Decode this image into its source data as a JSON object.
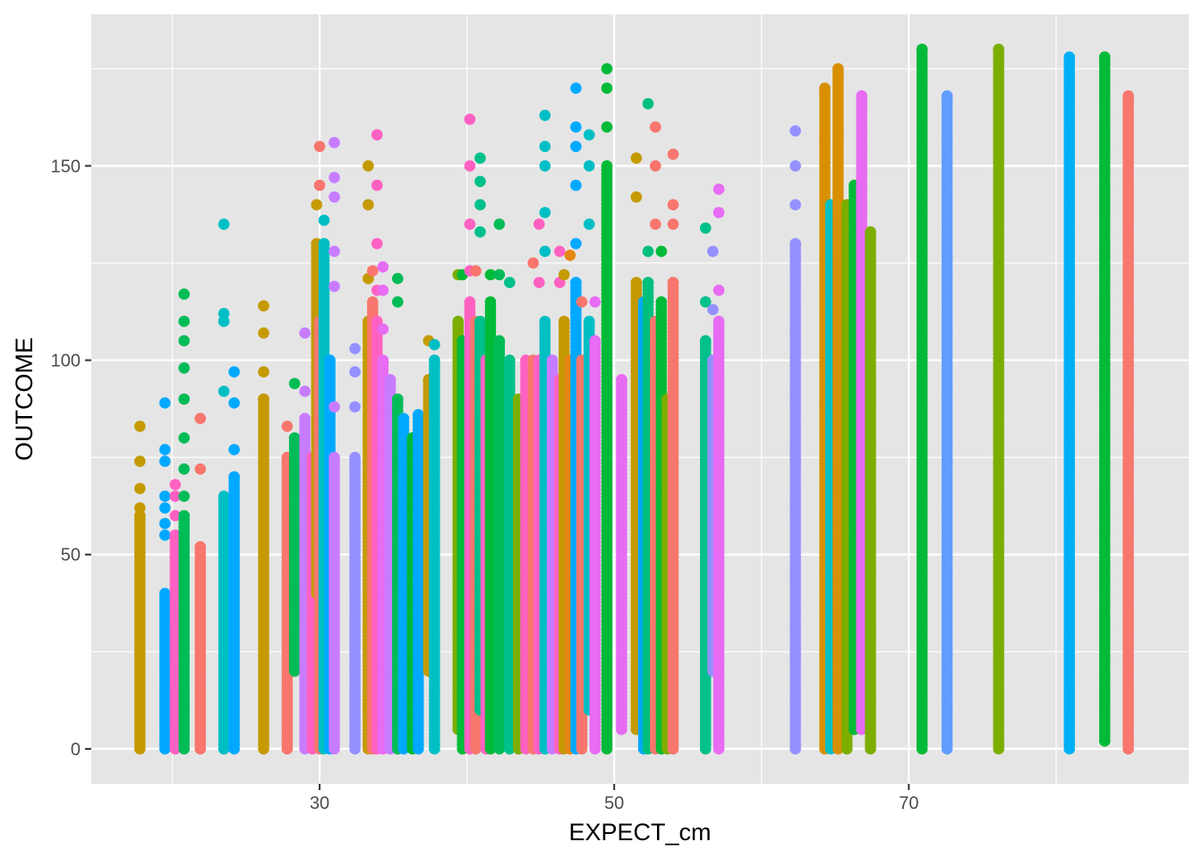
{
  "chart_data": {
    "type": "scatter",
    "title": "",
    "xlabel": "EXPECT_cm",
    "ylabel": "OUTCOME",
    "xlim": [
      14.5,
      89
    ],
    "ylim": [
      -9,
      189
    ],
    "x_ticks": [
      30,
      50,
      70
    ],
    "y_ticks": [
      0,
      50,
      100,
      150
    ],
    "grid": true,
    "legend": "none",
    "panel_background": "#e5e5e5",
    "series": [
      {
        "x": 17.8,
        "color": "#C49A00",
        "ymin": 0,
        "ymax": 60,
        "outliers": [
          62,
          67,
          74,
          83
        ]
      },
      {
        "x": 19.5,
        "color": "#00A9FF",
        "ymin": 0,
        "ymax": 40,
        "outliers": [
          55,
          58,
          62,
          65,
          74,
          77,
          89
        ]
      },
      {
        "x": 20.2,
        "color": "#FF61C3",
        "ymin": 0,
        "ymax": 55,
        "outliers": [
          60,
          65,
          68
        ]
      },
      {
        "x": 20.8,
        "color": "#00BC56",
        "ymin": 0,
        "ymax": 60,
        "outliers": [
          65,
          72,
          80,
          90,
          98,
          105,
          110,
          117
        ]
      },
      {
        "x": 21.9,
        "color": "#F8766D",
        "ymin": 0,
        "ymax": 52,
        "outliers": [
          72,
          85
        ]
      },
      {
        "x": 23.5,
        "color": "#00BFC4",
        "ymin": 0,
        "ymax": 65,
        "outliers": [
          92,
          110,
          112,
          135
        ]
      },
      {
        "x": 24.2,
        "color": "#00A9FF",
        "ymin": 0,
        "ymax": 70,
        "outliers": [
          77,
          89,
          97
        ]
      },
      {
        "x": 26.2,
        "color": "#C49A00",
        "ymin": 0,
        "ymax": 90,
        "outliers": [
          97,
          107,
          114
        ]
      },
      {
        "x": 27.8,
        "color": "#F8766D",
        "ymin": 0,
        "ymax": 75,
        "outliers": [
          83
        ]
      },
      {
        "x": 28.3,
        "color": "#00BC56",
        "ymin": 20,
        "ymax": 80,
        "outliers": [
          94
        ]
      },
      {
        "x": 29.0,
        "color": "#C77CFF",
        "ymin": 0,
        "ymax": 85,
        "outliers": [
          92,
          107
        ]
      },
      {
        "x": 29.5,
        "color": "#FF61C3",
        "ymin": 0,
        "ymax": 75,
        "outliers": []
      },
      {
        "x": 29.8,
        "color": "#C49A00",
        "ymin": 40,
        "ymax": 130,
        "outliers": [
          140
        ]
      },
      {
        "x": 30.0,
        "color": "#F8766D",
        "ymin": 0,
        "ymax": 110,
        "outliers": [
          145,
          155
        ]
      },
      {
        "x": 30.3,
        "color": "#00BFC4",
        "ymin": 0,
        "ymax": 130,
        "outliers": [
          136
        ]
      },
      {
        "x": 30.7,
        "color": "#00A9FF",
        "ymin": 0,
        "ymax": 100,
        "outliers": []
      },
      {
        "x": 31.0,
        "color": "#C77CFF",
        "ymin": 0,
        "ymax": 75,
        "outliers": [
          88,
          119,
          128,
          142,
          147,
          156
        ]
      },
      {
        "x": 32.4,
        "color": "#9590FF",
        "ymin": 0,
        "ymax": 75,
        "outliers": [
          88,
          97,
          103
        ]
      },
      {
        "x": 33.3,
        "color": "#C49A00",
        "ymin": 0,
        "ymax": 110,
        "outliers": [
          121,
          140,
          150
        ]
      },
      {
        "x": 33.6,
        "color": "#F8766D",
        "ymin": 0,
        "ymax": 115,
        "outliers": [
          123
        ]
      },
      {
        "x": 33.9,
        "color": "#FF61C3",
        "ymin": 0,
        "ymax": 110,
        "outliers": [
          118,
          130,
          145,
          158
        ]
      },
      {
        "x": 34.3,
        "color": "#E76BF3",
        "ymin": 0,
        "ymax": 100,
        "outliers": [
          108,
          118,
          124
        ]
      },
      {
        "x": 34.8,
        "color": "#C77CFF",
        "ymin": 0,
        "ymax": 95,
        "outliers": []
      },
      {
        "x": 35.3,
        "color": "#00BC56",
        "ymin": 0,
        "ymax": 90,
        "outliers": [
          115,
          121
        ]
      },
      {
        "x": 35.7,
        "color": "#00A9FF",
        "ymin": 0,
        "ymax": 85,
        "outliers": []
      },
      {
        "x": 36.3,
        "color": "#00BA38",
        "ymin": 0,
        "ymax": 80,
        "outliers": []
      },
      {
        "x": 36.7,
        "color": "#00A9FF",
        "ymin": 0,
        "ymax": 86,
        "outliers": []
      },
      {
        "x": 37.4,
        "color": "#C49A00",
        "ymin": 20,
        "ymax": 95,
        "outliers": [
          105
        ]
      },
      {
        "x": 37.8,
        "color": "#00BFC4",
        "ymin": 0,
        "ymax": 100,
        "outliers": [
          104
        ]
      },
      {
        "x": 39.4,
        "color": "#7CAE00",
        "ymin": 5,
        "ymax": 110,
        "outliers": [
          122
        ]
      },
      {
        "x": 39.7,
        "color": "#00BA38",
        "ymin": 0,
        "ymax": 105,
        "outliers": [
          122
        ]
      },
      {
        "x": 40.2,
        "color": "#FF61C3",
        "ymin": 0,
        "ymax": 115,
        "outliers": [
          123,
          135,
          150,
          162
        ]
      },
      {
        "x": 40.6,
        "color": "#F8766D",
        "ymin": 0,
        "ymax": 110,
        "outliers": [
          123
        ]
      },
      {
        "x": 40.9,
        "color": "#00C08B",
        "ymin": 10,
        "ymax": 110,
        "outliers": [
          133,
          140,
          146,
          152
        ]
      },
      {
        "x": 41.3,
        "color": "#FF61C3",
        "ymin": 0,
        "ymax": 100,
        "outliers": []
      },
      {
        "x": 41.6,
        "color": "#00BA38",
        "ymin": 0,
        "ymax": 115,
        "outliers": [
          122
        ]
      },
      {
        "x": 42.2,
        "color": "#00BC56",
        "ymin": 0,
        "ymax": 105,
        "outliers": [
          122,
          135
        ]
      },
      {
        "x": 42.9,
        "color": "#00C08B",
        "ymin": 0,
        "ymax": 100,
        "outliers": [
          120
        ]
      },
      {
        "x": 43.5,
        "color": "#7CAE00",
        "ymin": 0,
        "ymax": 90,
        "outliers": []
      },
      {
        "x": 44.0,
        "color": "#FF61C3",
        "ymin": 0,
        "ymax": 100,
        "outliers": []
      },
      {
        "x": 44.5,
        "color": "#F8766D",
        "ymin": 0,
        "ymax": 100,
        "outliers": [
          125
        ]
      },
      {
        "x": 44.9,
        "color": "#FF61C3",
        "ymin": 0,
        "ymax": 100,
        "outliers": [
          120,
          135
        ]
      },
      {
        "x": 45.3,
        "color": "#00BFC4",
        "ymin": 0,
        "ymax": 110,
        "outliers": [
          128,
          138,
          150,
          155,
          163
        ]
      },
      {
        "x": 45.8,
        "color": "#C77CFF",
        "ymin": 0,
        "ymax": 100,
        "outliers": []
      },
      {
        "x": 46.3,
        "color": "#FF61C3",
        "ymin": 0,
        "ymax": 95,
        "outliers": [
          120,
          128
        ]
      },
      {
        "x": 46.6,
        "color": "#C49A00",
        "ymin": 0,
        "ymax": 110,
        "outliers": [
          122
        ]
      },
      {
        "x": 47.0,
        "color": "#E68613",
        "ymin": 0,
        "ymax": 100,
        "outliers": [
          127
        ]
      },
      {
        "x": 47.4,
        "color": "#00A9FF",
        "ymin": 0,
        "ymax": 120,
        "outliers": [
          130,
          145,
          155,
          160,
          170
        ]
      },
      {
        "x": 47.8,
        "color": "#F8766D",
        "ymin": 0,
        "ymax": 100,
        "outliers": [
          115
        ]
      },
      {
        "x": 48.3,
        "color": "#00BFC4",
        "ymin": 10,
        "ymax": 110,
        "outliers": [
          135,
          150,
          158
        ]
      },
      {
        "x": 48.7,
        "color": "#E76BF3",
        "ymin": 0,
        "ymax": 105,
        "outliers": [
          115
        ]
      },
      {
        "x": 49.5,
        "color": "#00BA38",
        "ymin": 0,
        "ymax": 150,
        "outliers": [
          160,
          170,
          175
        ]
      },
      {
        "x": 50.5,
        "color": "#E76BF3",
        "ymin": 5,
        "ymax": 95,
        "outliers": []
      },
      {
        "x": 51.5,
        "color": "#C49A00",
        "ymin": 5,
        "ymax": 120,
        "outliers": [
          142,
          152
        ]
      },
      {
        "x": 52.0,
        "color": "#00A9FF",
        "ymin": 0,
        "ymax": 115,
        "outliers": []
      },
      {
        "x": 52.3,
        "color": "#00BF7D",
        "ymin": 0,
        "ymax": 120,
        "outliers": [
          128,
          166
        ]
      },
      {
        "x": 52.8,
        "color": "#F8766D",
        "ymin": 0,
        "ymax": 110,
        "outliers": [
          135,
          150,
          160
        ]
      },
      {
        "x": 53.2,
        "color": "#00BA38",
        "ymin": 0,
        "ymax": 115,
        "outliers": [
          128
        ]
      },
      {
        "x": 53.6,
        "color": "#7CAE00",
        "ymin": 0,
        "ymax": 90,
        "outliers": []
      },
      {
        "x": 54.0,
        "color": "#F8766D",
        "ymin": 0,
        "ymax": 120,
        "outliers": [
          135,
          140,
          153
        ]
      },
      {
        "x": 56.2,
        "color": "#00C08B",
        "ymin": 0,
        "ymax": 105,
        "outliers": [
          115,
          134
        ]
      },
      {
        "x": 56.7,
        "color": "#9590FF",
        "ymin": 20,
        "ymax": 100,
        "outliers": [
          113,
          128
        ]
      },
      {
        "x": 57.1,
        "color": "#E76BF3",
        "ymin": 0,
        "ymax": 110,
        "outliers": [
          118,
          138,
          144
        ]
      },
      {
        "x": 62.3,
        "color": "#9590FF",
        "ymin": 0,
        "ymax": 130,
        "outliers": [
          140,
          150,
          159
        ]
      },
      {
        "x": 64.3,
        "color": "#D89000",
        "ymin": 0,
        "ymax": 170,
        "outliers": []
      },
      {
        "x": 64.7,
        "color": "#00BFC4",
        "ymin": 0,
        "ymax": 140,
        "outliers": []
      },
      {
        "x": 65.2,
        "color": "#D89000",
        "ymin": 0,
        "ymax": 175,
        "outliers": []
      },
      {
        "x": 65.8,
        "color": "#7CAE00",
        "ymin": 0,
        "ymax": 140,
        "outliers": []
      },
      {
        "x": 66.3,
        "color": "#00BA38",
        "ymin": 5,
        "ymax": 145,
        "outliers": []
      },
      {
        "x": 66.8,
        "color": "#E76BF3",
        "ymin": 5,
        "ymax": 168,
        "outliers": []
      },
      {
        "x": 67.4,
        "color": "#7CAE00",
        "ymin": 0,
        "ymax": 133,
        "outliers": []
      },
      {
        "x": 70.9,
        "color": "#00BA38",
        "ymin": 0,
        "ymax": 180,
        "outliers": []
      },
      {
        "x": 72.6,
        "color": "#619CFF",
        "ymin": 0,
        "ymax": 168,
        "outliers": []
      },
      {
        "x": 76.1,
        "color": "#7CAE00",
        "ymin": 0,
        "ymax": 180,
        "outliers": []
      },
      {
        "x": 80.9,
        "color": "#00B0F6",
        "ymin": 0,
        "ymax": 178,
        "outliers": []
      },
      {
        "x": 83.3,
        "color": "#00BA38",
        "ymin": 2,
        "ymax": 178,
        "outliers": []
      },
      {
        "x": 84.9,
        "color": "#F8766D",
        "ymin": 0,
        "ymax": 168,
        "outliers": []
      }
    ]
  }
}
